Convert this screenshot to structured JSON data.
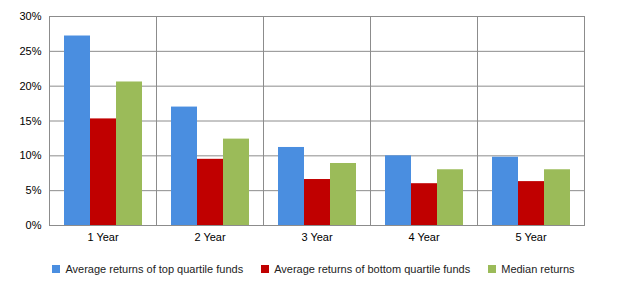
{
  "chart_data": {
    "type": "bar",
    "categories": [
      "1 Year",
      "2 Year",
      "3 Year",
      "4 Year",
      "5 Year"
    ],
    "series": [
      {
        "name": "Average returns of top quartile funds",
        "color": "#4a8ee0",
        "values": [
          27.2,
          17.0,
          11.2,
          10.0,
          9.8
        ]
      },
      {
        "name": "Average returns of bottom quartile funds",
        "color": "#c00000",
        "values": [
          15.3,
          9.5,
          6.6,
          6.0,
          6.3
        ]
      },
      {
        "name": "Median returns",
        "color": "#9bbb59",
        "values": [
          20.6,
          12.4,
          8.9,
          8.0,
          8.0
        ]
      }
    ],
    "ylim": [
      0,
      30
    ],
    "yticks": [
      {
        "value": 0,
        "label": "0%"
      },
      {
        "value": 5,
        "label": "5%"
      },
      {
        "value": 10,
        "label": "10%"
      },
      {
        "value": 15,
        "label": "15%"
      },
      {
        "value": 20,
        "label": "20%"
      },
      {
        "value": 25,
        "label": "25%"
      },
      {
        "value": 30,
        "label": "30%"
      }
    ],
    "grid": true,
    "legend": "bottom"
  }
}
